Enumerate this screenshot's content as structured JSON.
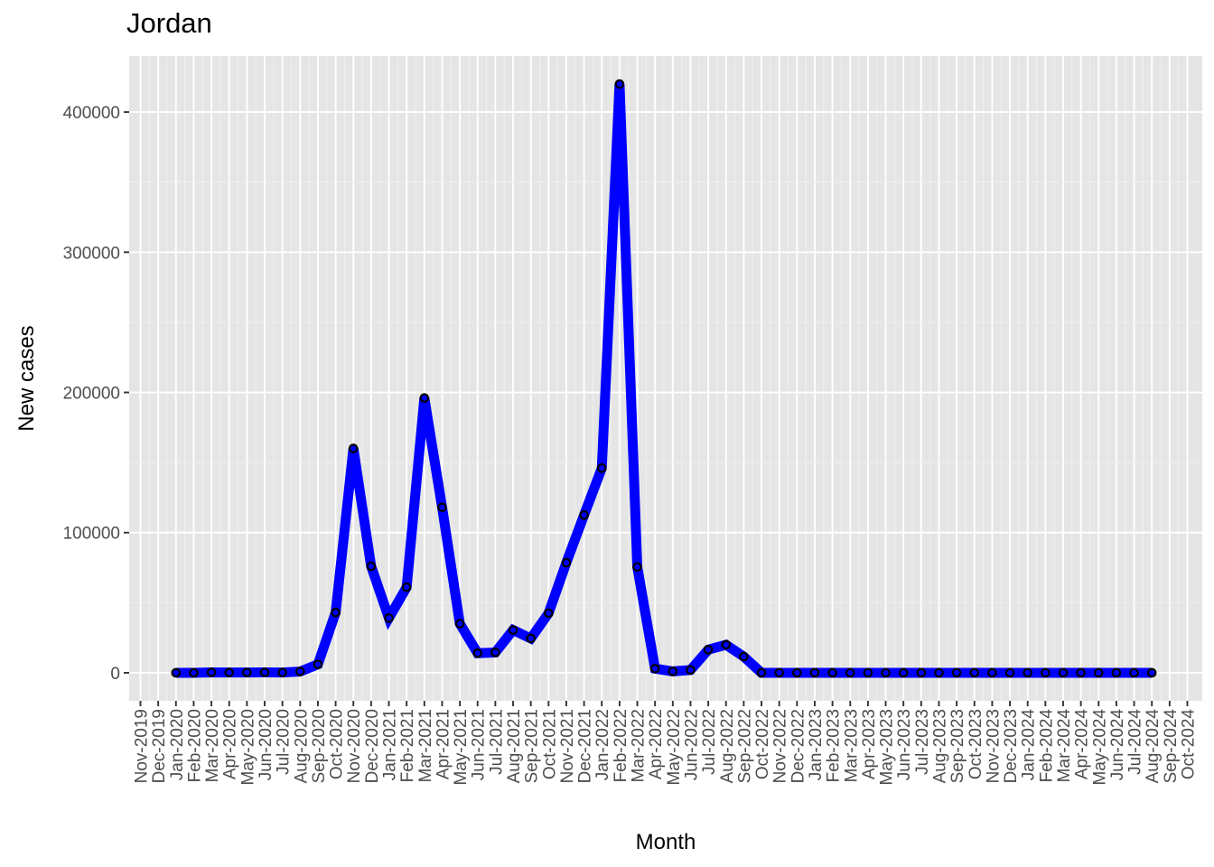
{
  "chart_data": {
    "type": "line",
    "title": "Jordan",
    "xlabel": "Month",
    "ylabel": "New cases",
    "ylim": [
      -20000,
      440000
    ],
    "y_ticks": [
      0,
      100000,
      200000,
      300000,
      400000
    ],
    "y_tick_labels": [
      "0",
      "100000",
      "200000",
      "300000",
      "400000"
    ],
    "x_tick_labels": [
      "Nov-2019",
      "Dec-2019",
      "Jan-2020",
      "Feb-2020",
      "Mar-2020",
      "Apr-2020",
      "May-2020",
      "Jun-2020",
      "Jul-2020",
      "Aug-2020",
      "Sep-2020",
      "Oct-2020",
      "Nov-2020",
      "Dec-2020",
      "Jan-2021",
      "Feb-2021",
      "Mar-2021",
      "Apr-2021",
      "May-2021",
      "Jun-2021",
      "Jul-2021",
      "Aug-2021",
      "Sep-2021",
      "Oct-2021",
      "Nov-2021",
      "Dec-2021",
      "Jan-2022",
      "Feb-2022",
      "Mar-2022",
      "Apr-2022",
      "May-2022",
      "Jun-2022",
      "Jul-2022",
      "Aug-2022",
      "Sep-2022",
      "Oct-2022",
      "Nov-2022",
      "Dec-2022",
      "Jan-2023",
      "Feb-2023",
      "Mar-2023",
      "Apr-2023",
      "May-2023",
      "Jun-2023",
      "Jul-2023",
      "Aug-2023",
      "Sep-2023",
      "Oct-2023",
      "Nov-2023",
      "Dec-2023",
      "Jan-2024",
      "Feb-2024",
      "Mar-2024",
      "Apr-2024",
      "May-2024",
      "Jun-2024",
      "Jul-2024",
      "Aug-2024",
      "Sep-2024",
      "Oct-2024"
    ],
    "x": [
      "Jan-2020",
      "Feb-2020",
      "Mar-2020",
      "Apr-2020",
      "May-2020",
      "Jun-2020",
      "Jul-2020",
      "Aug-2020",
      "Sep-2020",
      "Oct-2020",
      "Nov-2020",
      "Dec-2020",
      "Jan-2021",
      "Feb-2021",
      "Mar-2021",
      "Apr-2021",
      "May-2021",
      "Jun-2021",
      "Jul-2021",
      "Aug-2021",
      "Sep-2021",
      "Oct-2021",
      "Nov-2021",
      "Dec-2021",
      "Jan-2022",
      "Feb-2022",
      "Mar-2022",
      "Apr-2022",
      "May-2022",
      "Jun-2022",
      "Jul-2022",
      "Aug-2022",
      "Sep-2022",
      "Oct-2022",
      "Nov-2022",
      "Dec-2022",
      "Jan-2023",
      "Feb-2023",
      "Mar-2023",
      "Apr-2023",
      "May-2023",
      "Jun-2023",
      "Jul-2023",
      "Aug-2023",
      "Sep-2023",
      "Oct-2023",
      "Nov-2023",
      "Dec-2023",
      "Jan-2024",
      "Feb-2024",
      "Mar-2024",
      "Apr-2024",
      "May-2024",
      "Jun-2024",
      "Jul-2024",
      "Aug-2024"
    ],
    "series": [
      {
        "values": [
          0,
          0,
          300,
          200,
          200,
          300,
          200,
          900,
          6000,
          43000,
          160000,
          76000,
          39000,
          61000,
          196000,
          118000,
          35000,
          14000,
          14500,
          30500,
          24500,
          42500,
          78500,
          112500,
          146000,
          420000,
          75500,
          3000,
          1000,
          2000,
          16500,
          20000,
          11500,
          0,
          0,
          0,
          0,
          0,
          0,
          0,
          0,
          0,
          0,
          0,
          0,
          0,
          0,
          0,
          0,
          0,
          0,
          0,
          0,
          0,
          0,
          0
        ]
      }
    ],
    "line_color": "#0000ff",
    "grid": true,
    "panel_background": "#e5e5e5"
  }
}
